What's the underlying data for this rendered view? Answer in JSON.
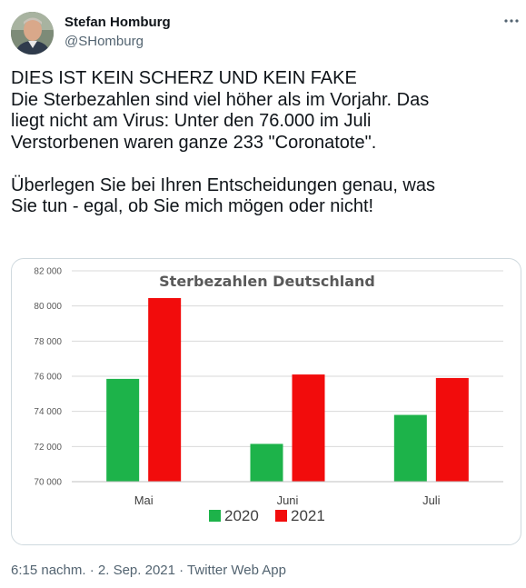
{
  "author": {
    "name": "Stefan Homburg",
    "handle": "@SHomburg"
  },
  "more_label": "···",
  "tweet": {
    "lines": [
      "DIES IST KEIN SCHERZ UND KEIN FAKE",
      "Die Sterbezahlen sind viel höher als im Vorjahr. Das",
      "liegt nicht am Virus: Unter den 76.000 im Juli",
      "Verstorbenen waren ganze 233 \"Coronatote\".",
      "",
      "Überlegen Sie bei Ihren Entscheidungen genau, was",
      "Sie tun - egal, ob Sie mich mögen oder nicht!"
    ]
  },
  "footer": {
    "time": "6:15 nachm.",
    "separator1": " · ",
    "date": "2. Sep. 2021",
    "separator2": " · ",
    "source": "Twitter Web App"
  },
  "colors": {
    "text": "#0f1419",
    "muted": "#536471",
    "border": "#cfd9de",
    "series_2020": "#1db34a",
    "series_2021": "#f20c0c"
  },
  "chart_data": {
    "type": "bar",
    "title": "Sterbezahlen Deutschland",
    "categories": [
      "Mai",
      "Juni",
      "Juli"
    ],
    "series": [
      {
        "name": "2020",
        "values": [
          75850,
          72150,
          73800
        ]
      },
      {
        "name": "2021",
        "values": [
          80450,
          76100,
          75900
        ]
      }
    ],
    "ylim": [
      70000,
      82000
    ],
    "yticks": [
      70000,
      72000,
      74000,
      76000,
      78000,
      80000,
      82000
    ],
    "ytick_labels": [
      "70 000",
      "72 000",
      "74 000",
      "76 000",
      "78 000",
      "80 000",
      "82 000"
    ],
    "xlabel": "",
    "ylabel": "",
    "grid": true,
    "legend_position": "bottom"
  }
}
